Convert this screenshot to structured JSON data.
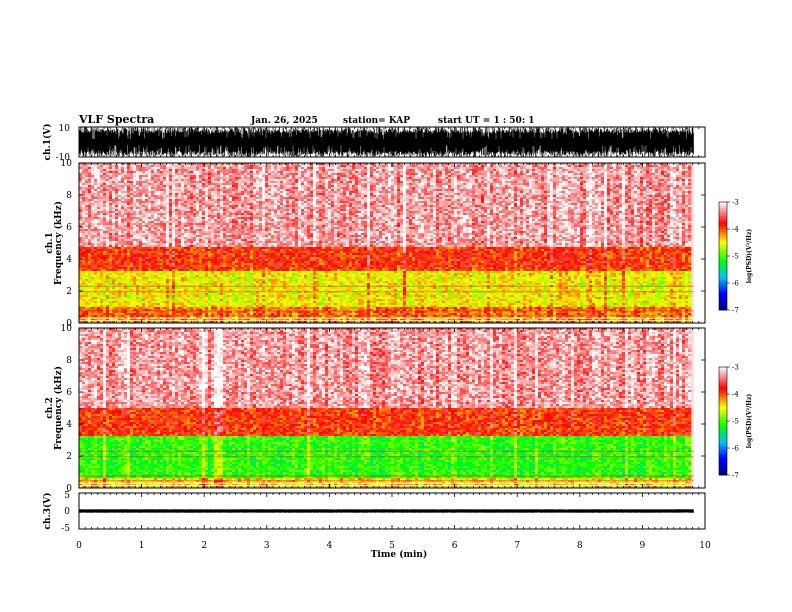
{
  "header": {
    "title": "VLF Spectra",
    "date": "Jan. 26, 2025",
    "station": "station= KAP",
    "start": "start UT =  1 : 50: 1"
  },
  "chart_data": [
    {
      "type": "line",
      "panel": "ch1-waveform",
      "ylabel": "ch.1(V)",
      "ylim": [
        -10,
        10
      ],
      "y_ticks": [
        "10",
        "-10"
      ],
      "xlim": [
        0,
        10
      ],
      "description_values": {
        "amplitude_range_V": [
          -10,
          10
        ]
      }
    },
    {
      "type": "heatmap",
      "panel": "ch1-spectrogram",
      "ylabel": "ch.1\nFrequency (kHz)",
      "ylim": [
        0,
        10
      ],
      "y_ticks": [
        "0",
        "2",
        "4",
        "6",
        "8",
        "10"
      ],
      "xlim": [
        0,
        10
      ],
      "colorbar": {
        "label": "log(PSD)(V²/Hz)",
        "ticks": [
          "-3",
          "-4",
          "-5",
          "-6",
          "-7"
        ],
        "range": [
          -7,
          -3
        ]
      },
      "bands": [
        {
          "fmin_khz": 0.0,
          "fmax_khz": 0.4,
          "level": -4.2
        },
        {
          "fmin_khz": 0.4,
          "fmax_khz": 1.0,
          "level": -4.1
        },
        {
          "fmin_khz": 1.0,
          "fmax_khz": 3.2,
          "level": -4.5
        },
        {
          "fmin_khz": 3.2,
          "fmax_khz": 4.8,
          "level": -3.9
        },
        {
          "fmin_khz": 4.8,
          "fmax_khz": 10.0,
          "level": -3.3
        }
      ]
    },
    {
      "type": "heatmap",
      "panel": "ch2-spectrogram",
      "ylabel": "ch.2\nFrequency (kHz)",
      "ylim": [
        0,
        10
      ],
      "y_ticks": [
        "0",
        "2",
        "4",
        "6",
        "8",
        "10"
      ],
      "xlim": [
        0,
        10
      ],
      "colorbar": {
        "label": "log(PSD)(V²/Hz)",
        "ticks": [
          "-3",
          "-4",
          "-5",
          "-6",
          "-7"
        ],
        "range": [
          -7,
          -3
        ]
      },
      "bands": [
        {
          "fmin_khz": 0.0,
          "fmax_khz": 0.6,
          "level": -4.4
        },
        {
          "fmin_khz": 0.6,
          "fmax_khz": 3.2,
          "level": -5.1
        },
        {
          "fmin_khz": 3.2,
          "fmax_khz": 5.0,
          "level": -3.9
        },
        {
          "fmin_khz": 5.0,
          "fmax_khz": 10.0,
          "level": -3.3
        }
      ]
    },
    {
      "type": "line",
      "panel": "ch3-waveform",
      "ylabel": "ch.3(V)",
      "ylim": [
        -5,
        5
      ],
      "y_ticks": [
        "5",
        "0",
        "-5"
      ],
      "xlim": [
        0,
        10
      ],
      "description_values": {
        "amplitude_range_V": [
          -0.5,
          0.5
        ]
      }
    }
  ],
  "xaxis": {
    "label": "Time (min)",
    "ticks": [
      "0",
      "1",
      "2",
      "3",
      "4",
      "5",
      "6",
      "7",
      "8",
      "9",
      "10"
    ],
    "data_end_min": 9.82
  },
  "colors": {
    "background": "#ffffff",
    "waveform": "#000000",
    "colormap": [
      "#000080",
      "#0000ff",
      "#00c0ff",
      "#00ff00",
      "#ffff00",
      "#ff0000",
      "#ffffff"
    ]
  }
}
